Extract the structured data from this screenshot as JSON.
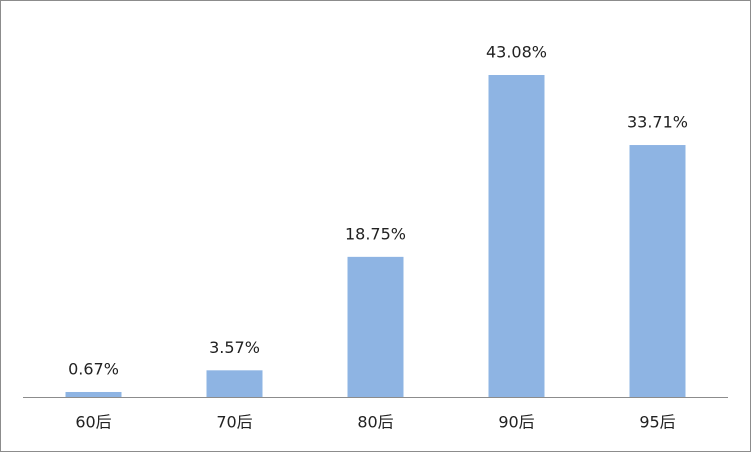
{
  "chart_data": {
    "type": "bar",
    "categories": [
      "60后",
      "70后",
      "80后",
      "90后",
      "95后"
    ],
    "values": [
      0.67,
      3.57,
      18.75,
      43.08,
      33.71
    ],
    "value_labels": [
      "0.67%",
      "3.57%",
      "18.75%",
      "43.08%",
      "33.71%"
    ],
    "color": "#8eb4e3"
  }
}
